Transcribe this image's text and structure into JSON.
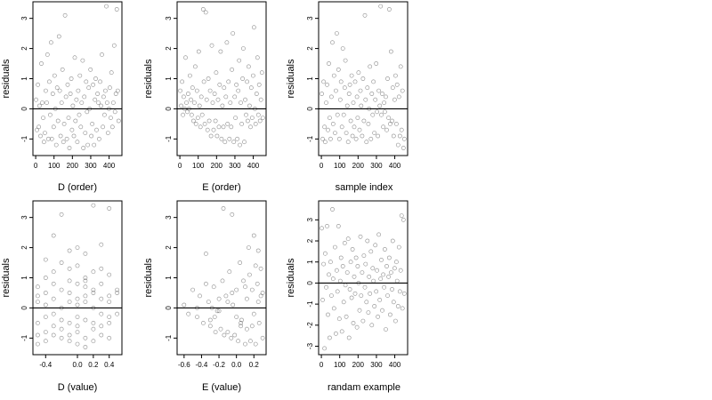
{
  "figure": {
    "background": "#ffffff",
    "point_color": "#000000",
    "point_opacity": 0.45,
    "reference_line_color": "#000000"
  },
  "chart_data": [
    {
      "type": "scatter",
      "xlabel": "D (order)",
      "ylabel": "residuals",
      "xlim": [
        -15,
        470
      ],
      "ylim": [
        -1.55,
        3.55
      ],
      "xticks": [
        0,
        100,
        200,
        300,
        400
      ],
      "yticks": [
        -1,
        0,
        1,
        2,
        3
      ],
      "reference_line_y": 0,
      "pattern": "cyclic",
      "x": [
        2,
        7,
        12,
        17,
        21,
        26,
        31,
        36,
        41,
        45,
        50,
        55,
        60,
        64,
        69,
        74,
        79,
        84,
        88,
        93,
        98,
        103,
        107,
        112,
        117,
        122,
        127,
        131,
        136,
        141,
        146,
        151,
        155,
        160,
        165,
        170,
        174,
        179,
        184,
        189,
        194,
        198,
        203,
        208,
        213,
        217,
        222,
        227,
        232,
        237,
        241,
        246,
        251,
        256,
        260,
        265,
        270,
        275,
        280,
        284,
        289,
        294,
        299,
        303,
        308,
        313,
        318,
        323,
        327,
        332,
        337,
        342,
        346,
        351,
        356,
        361,
        366,
        370,
        375,
        380,
        385,
        389,
        394,
        399,
        404,
        409,
        413,
        418,
        423,
        428,
        432,
        437,
        442,
        447,
        452
      ],
      "y": [
        0.3,
        -0.7,
        0.8,
        -0.6,
        0.1,
        -0.9,
        1.5,
        0.2,
        -0.3,
        -1.1,
        -0.8,
        0.6,
        0.2,
        1.8,
        -1.0,
        0.9,
        -0.2,
        2.2,
        -1.0,
        0.5,
        -0.6,
        1.1,
        0.0,
        -1.2,
        0.7,
        -0.4,
        2.4,
        0.6,
        -0.9,
        0.2,
        1.3,
        -1.1,
        -0.5,
        3.1,
        0.4,
        -1.0,
        0.8,
        -0.3,
        -1.3,
        0.5,
        1.0,
        -0.7,
        0.1,
        -0.9,
        1.7,
        -0.4,
        0.3,
        -1.1,
        0.6,
        -0.2,
        1.1,
        -0.6,
        0.2,
        1.6,
        -1.3,
        0.4,
        -0.8,
        0.9,
        -0.1,
        -1.2,
        0.7,
        0.0,
        1.3,
        -0.9,
        -0.5,
        0.8,
        -1.2,
        0.3,
        1.0,
        -0.7,
        0.5,
        0.2,
        -1.0,
        0.9,
        0.1,
        1.8,
        -0.6,
        0.4,
        -0.2,
        0.6,
        3.4,
        0.2,
        -0.8,
        0.0,
        0.7,
        -0.3,
        1.2,
        -0.6,
        0.2,
        2.1,
        -0.1,
        0.5,
        3.3,
        0.6,
        -0.4
      ]
    },
    {
      "type": "scatter",
      "xlabel": "E (order)",
      "ylabel": "residuals",
      "xlim": [
        -15,
        470
      ],
      "ylim": [
        -1.55,
        3.55
      ],
      "xticks": [
        0,
        100,
        200,
        300,
        400
      ],
      "yticks": [
        -1,
        0,
        1,
        2,
        3
      ],
      "reference_line_y": 0,
      "pattern": "declining band",
      "x": [
        2,
        7,
        12,
        17,
        21,
        26,
        31,
        36,
        41,
        45,
        50,
        55,
        60,
        64,
        69,
        74,
        79,
        84,
        88,
        93,
        98,
        103,
        107,
        112,
        117,
        122,
        127,
        131,
        136,
        141,
        146,
        151,
        155,
        160,
        165,
        170,
        174,
        179,
        184,
        189,
        194,
        198,
        203,
        208,
        213,
        217,
        222,
        227,
        232,
        237,
        241,
        246,
        251,
        256,
        260,
        265,
        270,
        275,
        280,
        284,
        289,
        294,
        299,
        303,
        308,
        313,
        318,
        323,
        327,
        332,
        337,
        342,
        346,
        351,
        356,
        361,
        366,
        370,
        375,
        380,
        385,
        389,
        394,
        399,
        404,
        409,
        413,
        418,
        423,
        428,
        432,
        437,
        442,
        447,
        452
      ],
      "y": [
        0.6,
        0.1,
        0.9,
        -0.2,
        0.4,
        0.0,
        1.7,
        0.2,
        -0.1,
        0.5,
        0.0,
        1.1,
        0.3,
        -0.2,
        0.7,
        -0.4,
        0.2,
        1.4,
        -0.5,
        0.6,
        -0.3,
        1.9,
        0.1,
        -0.6,
        0.4,
        -0.2,
        3.3,
        0.9,
        -0.5,
        3.2,
        0.3,
        -0.7,
        1.0,
        -0.4,
        0.6,
        -0.9,
        2.1,
        0.2,
        -0.7,
        0.5,
        -0.4,
        1.2,
        -0.9,
        0.3,
        -0.6,
        0.8,
        1.9,
        -1.0,
        0.1,
        -0.6,
        0.7,
        -1.1,
        0.4,
        2.2,
        -0.5,
        0.9,
        -1.0,
        0.2,
        -0.6,
        1.3,
        2.5,
        -1.1,
        0.4,
        -0.3,
        0.8,
        -1.0,
        0.6,
        1.6,
        -1.2,
        0.2,
        -0.5,
        1.0,
        2.0,
        -1.1,
        0.3,
        -0.2,
        0.9,
        -0.4,
        1.4,
        0.1,
        -0.6,
        0.7,
        -0.3,
        1.1,
        2.7,
        0.0,
        -0.5,
        0.5,
        1.7,
        -0.2,
        0.8,
        -0.4,
        0.3,
        1.2,
        -0.3
      ]
    },
    {
      "type": "scatter",
      "xlabel": "sample index",
      "ylabel": "residuals",
      "xlim": [
        -15,
        470
      ],
      "ylim": [
        -1.55,
        3.55
      ],
      "xticks": [
        0,
        100,
        200,
        300,
        400
      ],
      "yticks": [
        -1,
        0,
        1,
        2,
        3
      ],
      "reference_line_y": 0,
      "pattern": "cyclic",
      "x": [
        2,
        7,
        12,
        17,
        21,
        26,
        31,
        36,
        41,
        45,
        50,
        55,
        60,
        64,
        69,
        74,
        79,
        84,
        88,
        93,
        98,
        103,
        107,
        112,
        117,
        122,
        127,
        131,
        136,
        141,
        146,
        151,
        155,
        160,
        165,
        170,
        174,
        179,
        184,
        189,
        194,
        198,
        203,
        208,
        213,
        217,
        222,
        227,
        232,
        237,
        241,
        246,
        251,
        256,
        260,
        265,
        270,
        275,
        280,
        284,
        289,
        294,
        299,
        303,
        308,
        313,
        318,
        323,
        327,
        332,
        337,
        342,
        346,
        351,
        356,
        361,
        366,
        370,
        375,
        380,
        385,
        389,
        394,
        399,
        404,
        409,
        413,
        418,
        423,
        428,
        432,
        437,
        442,
        447,
        452
      ],
      "y": [
        0.5,
        -1.0,
        0.9,
        -0.6,
        -1.1,
        0.2,
        0.8,
        -0.7,
        1.5,
        -0.3,
        -1.0,
        0.4,
        2.2,
        -0.5,
        1.1,
        -0.8,
        0.6,
        2.5,
        -0.2,
        1.3,
        -1.0,
        0.3,
        0.9,
        -0.6,
        2.0,
        -0.2,
        0.7,
        1.6,
        -0.8,
        0.1,
        -1.1,
        0.5,
        0.8,
        -0.4,
        1.1,
        -0.9,
        0.2,
        -0.6,
        0.9,
        -1.0,
        0.4,
        -0.3,
        1.2,
        -0.7,
        0.6,
        0.1,
        -0.9,
        1.0,
        -0.4,
        3.1,
        0.3,
        -1.1,
        0.7,
        -0.5,
        0.0,
        1.4,
        -1.0,
        0.5,
        -0.2,
        0.9,
        -0.8,
        0.3,
        1.5,
        -0.1,
        -0.9,
        0.6,
        0.1,
        3.4,
        -0.2,
        0.5,
        -0.6,
        0.2,
        -0.1,
        0.4,
        -0.7,
        1.0,
        -0.3,
        3.3,
        -0.5,
        1.9,
        -0.4,
        0.7,
        -0.9,
        0.3,
        1.1,
        -0.5,
        0.8,
        -1.2,
        0.4,
        -0.9,
        1.4,
        -0.7,
        0.6,
        -1.3,
        -1.0
      ]
    },
    {
      "type": "scatter",
      "xlabel": "D (value)",
      "ylabel": "residuals",
      "xlim": [
        -0.56,
        0.56
      ],
      "ylim": [
        -1.55,
        3.55
      ],
      "xticks": [
        -0.4,
        0.0,
        0.2,
        0.4
      ],
      "xticklabels": [
        "-0.4",
        "0.0",
        "0.2",
        "0.4"
      ],
      "yticks": [
        -1,
        0,
        1,
        2,
        3
      ],
      "reference_line_y": 0,
      "pattern": "vertical stripes at discrete x",
      "x": [
        -0.5,
        -0.5,
        -0.5,
        -0.5,
        -0.5,
        -0.5,
        -0.4,
        -0.4,
        -0.4,
        -0.4,
        -0.4,
        -0.4,
        -0.4,
        -0.3,
        -0.3,
        -0.3,
        -0.3,
        -0.3,
        -0.3,
        -0.3,
        -0.2,
        -0.2,
        -0.2,
        -0.2,
        -0.2,
        -0.2,
        -0.2,
        -0.1,
        -0.1,
        -0.1,
        -0.1,
        -0.1,
        -0.1,
        -0.1,
        -0.1,
        0.0,
        0.0,
        0.0,
        0.0,
        0.0,
        0.0,
        0.0,
        0.0,
        0.0,
        0.1,
        0.1,
        0.1,
        0.1,
        0.1,
        0.1,
        0.1,
        0.1,
        0.1,
        0.2,
        0.2,
        0.2,
        0.2,
        0.2,
        0.2,
        0.2,
        0.2,
        0.3,
        0.3,
        0.3,
        0.3,
        0.3,
        0.3,
        0.3,
        0.4,
        0.4,
        0.4,
        0.4,
        0.4,
        0.4,
        0.4,
        0.5,
        0.5,
        0.5
      ],
      "y": [
        0.7,
        -0.9,
        0.2,
        -0.5,
        -1.2,
        0.4,
        1.6,
        -0.8,
        0.1,
        -0.3,
        1.0,
        -1.1,
        0.5,
        1.2,
        -0.6,
        0.3,
        2.4,
        -0.9,
        0.8,
        -0.2,
        1.5,
        -0.7,
        0.0,
        3.1,
        -1.0,
        0.6,
        -0.4,
        0.9,
        -1.1,
        1.9,
        0.2,
        -0.5,
        1.3,
        -0.9,
        0.5,
        0.3,
        -1.2,
        2.0,
        -0.3,
        0.8,
        -0.8,
        1.4,
        0.1,
        -0.6,
        1.0,
        -1.0,
        0.4,
        1.8,
        -0.4,
        0.7,
        -1.3,
        0.2,
        0.9,
        0.5,
        -0.7,
        1.2,
        -1.1,
        0.0,
        3.4,
        -0.5,
        0.6,
        0.8,
        -0.9,
        0.3,
        1.3,
        -0.6,
        2.1,
        -0.2,
        0.4,
        -1.0,
        1.1,
        -0.3,
        3.3,
        0.2,
        -0.5,
        0.6,
        -0.2,
        0.5
      ]
    },
    {
      "type": "scatter",
      "xlabel": "E (value)",
      "ylabel": "residuals",
      "xlim": [
        -0.68,
        0.34
      ],
      "ylim": [
        -1.55,
        3.55
      ],
      "xticks": [
        -0.6,
        -0.4,
        -0.2,
        0.0,
        0.2
      ],
      "xticklabels": [
        "-0.6",
        "-0.4",
        "-0.2",
        "0.0",
        "0.2"
      ],
      "yticks": [
        -1,
        0,
        1,
        2,
        3
      ],
      "reference_line_y": 0,
      "pattern": "downward sloping band",
      "x": [
        -0.6,
        -0.55,
        -0.5,
        -0.45,
        -0.42,
        -0.38,
        -0.35,
        -0.32,
        -0.3,
        -0.28,
        -0.26,
        -0.24,
        -0.22,
        -0.2,
        -0.18,
        -0.16,
        -0.14,
        -0.12,
        -0.1,
        -0.08,
        -0.06,
        -0.04,
        -0.02,
        0.0,
        0.02,
        0.04,
        0.06,
        0.08,
        0.1,
        0.12,
        0.14,
        0.16,
        0.18,
        0.2,
        0.22,
        0.24,
        0.26,
        0.28,
        0.3,
        -0.35,
        -0.25,
        -0.15,
        -0.05,
        0.05,
        0.15,
        0.25,
        -0.3,
        -0.1,
        0.0,
        0.1,
        0.2,
        0.25,
        0.28,
        -0.2,
        -0.05,
        0.12,
        0.22,
        0.3,
        -0.45,
        0.05,
        0.18
      ],
      "y": [
        0.1,
        -0.2,
        0.6,
        -0.3,
        0.4,
        -0.5,
        1.8,
        0.2,
        -0.6,
        0.0,
        0.7,
        -0.8,
        -0.1,
        0.3,
        -0.7,
        0.9,
        -0.9,
        0.4,
        -0.8,
        1.2,
        -1.0,
        0.1,
        -0.9,
        0.6,
        -1.1,
        1.5,
        -0.4,
        0.9,
        -1.2,
        0.3,
        2.0,
        -1.1,
        0.6,
        2.4,
        -1.2,
        0.8,
        -0.5,
        1.3,
        -1.0,
        0.8,
        -0.3,
        3.3,
        0.5,
        -0.6,
        1.1,
        0.2,
        -0.4,
        0.2,
        -0.3,
        0.7,
        -0.2,
        1.9,
        0.4,
        -0.1,
        3.1,
        -0.7,
        1.4,
        0.5,
        0.0,
        -0.5,
        -0.6
      ]
    },
    {
      "type": "scatter",
      "xlabel": "randam example",
      "ylabel": "residuals",
      "xlim": [
        -15,
        470
      ],
      "ylim": [
        -3.4,
        3.9
      ],
      "xticks": [
        0,
        100,
        200,
        300,
        400
      ],
      "yticks": [
        -3,
        -2,
        -1,
        0,
        1,
        2,
        3
      ],
      "reference_line_y": 0,
      "pattern": "random noise",
      "x": [
        2,
        7,
        12,
        17,
        21,
        26,
        31,
        36,
        41,
        45,
        50,
        55,
        60,
        64,
        69,
        74,
        79,
        84,
        88,
        93,
        98,
        103,
        107,
        112,
        117,
        122,
        127,
        131,
        136,
        141,
        146,
        151,
        155,
        160,
        165,
        170,
        174,
        179,
        184,
        189,
        194,
        198,
        203,
        208,
        213,
        217,
        222,
        227,
        232,
        237,
        241,
        246,
        251,
        256,
        260,
        265,
        270,
        275,
        280,
        284,
        289,
        294,
        299,
        303,
        308,
        313,
        318,
        323,
        327,
        332,
        337,
        342,
        346,
        351,
        356,
        361,
        366,
        370,
        375,
        380,
        385,
        389,
        394,
        399,
        404,
        409,
        413,
        418,
        423,
        428,
        432,
        437,
        442,
        447,
        452
      ],
      "y": [
        2.6,
        -0.8,
        0.9,
        -3.1,
        1.4,
        -0.2,
        2.7,
        -1.5,
        0.4,
        -2.6,
        1.0,
        -0.6,
        3.5,
        0.2,
        -1.2,
        1.7,
        -2.4,
        0.6,
        -0.4,
        2.7,
        -1.7,
        0.1,
        1.2,
        -2.3,
        0.8,
        -0.9,
        1.9,
        -0.1,
        -1.6,
        0.5,
        2.1,
        -2.6,
        -0.3,
        1.0,
        -0.7,
        1.6,
        -1.9,
        0.3,
        -0.5,
        1.2,
        -2.1,
        0.8,
        0.0,
        -1.3,
        2.2,
        -0.6,
        0.5,
        -1.8,
        1.3,
        -0.2,
        0.9,
        -0.9,
        2.0,
        -1.4,
        0.3,
        -0.5,
        1.5,
        -2.0,
        0.7,
        0.1,
        -1.1,
        1.8,
        -0.4,
        0.6,
        -1.6,
        2.3,
        -0.8,
        0.2,
        1.1,
        -1.3,
        0.4,
        -0.2,
        1.6,
        -2.2,
        0.8,
        -0.6,
        0.3,
        1.2,
        -1.5,
        0.5,
        -0.3,
        2.0,
        -0.9,
        0.7,
        -1.8,
        1.0,
        0.1,
        -1.1,
        1.7,
        -0.4,
        0.6,
        3.2,
        -1.2,
        3.0,
        -0.5
      ]
    }
  ]
}
